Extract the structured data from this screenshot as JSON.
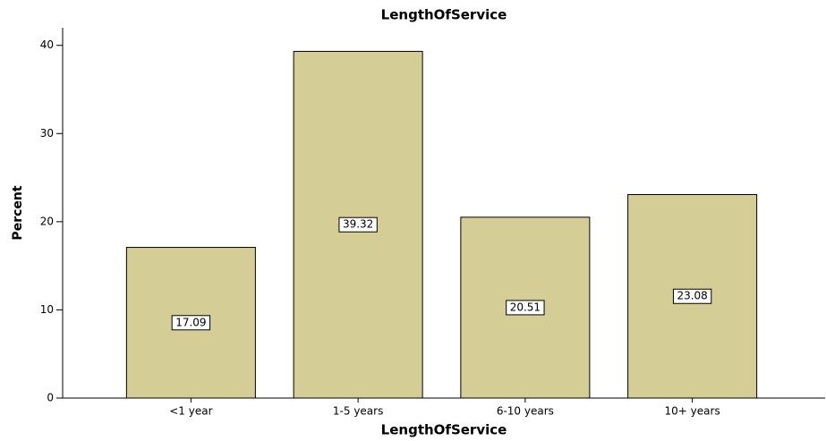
{
  "chart_data": {
    "type": "bar",
    "title": "LengthOfService",
    "x_label": "LengthOfService",
    "y_label": "Percent",
    "categories": [
      "<1 year",
      "1-5 years",
      "6-10 years",
      "10+ years"
    ],
    "values": [
      17.09,
      39.32,
      20.51,
      23.08
    ],
    "color": "#d4cd96",
    "ylim": [
      0,
      42
    ],
    "yticks": [
      0,
      10,
      20,
      30,
      40
    ],
    "grid": false
  }
}
